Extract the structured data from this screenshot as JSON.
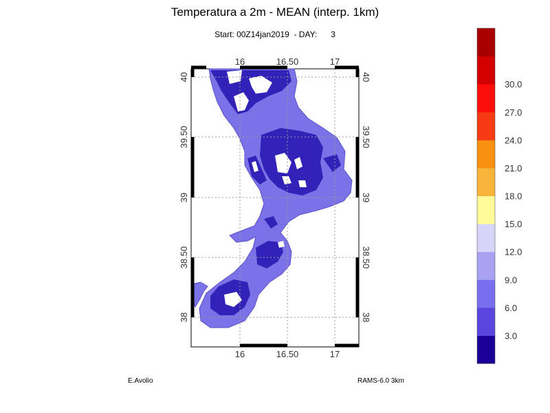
{
  "title": "Temperatura a 2m - MEAN (interp. 1km)",
  "subtitle": "Start: 00Z14jan2019  - DAY:      3",
  "footer": {
    "author": "E.Avolio",
    "model": "RAMS-6.0 3km"
  },
  "map": {
    "lon_ticks_top": [
      "16",
      "16.50",
      "17"
    ],
    "lon_ticks_bottom": [
      "16",
      "16.50",
      "17"
    ],
    "lat_ticks_left": [
      "40",
      "39.50",
      "39",
      "38.50",
      "38"
    ],
    "lat_ticks_right": [
      "40",
      "39.50",
      "39",
      "38.50",
      "38"
    ],
    "grid": true
  },
  "colorbar": {
    "labels": [
      "3.0",
      "6.0",
      "9.0",
      "12.0",
      "15.0",
      "18.0",
      "21.0",
      "24.0",
      "27.0",
      "30.0"
    ],
    "colors": [
      "#1a0096",
      "#5a46dc",
      "#7a6ef0",
      "#a9a2f2",
      "#d6d4f7",
      "#fffa9a",
      "#f8b43a",
      "#f89012",
      "#f53a14",
      "#fb0f08",
      "#d20000",
      "#a80000"
    ]
  },
  "palette": {
    "land": "#7b72e8",
    "land_dark": "#3222b8",
    "coast": "#5b50c8"
  }
}
